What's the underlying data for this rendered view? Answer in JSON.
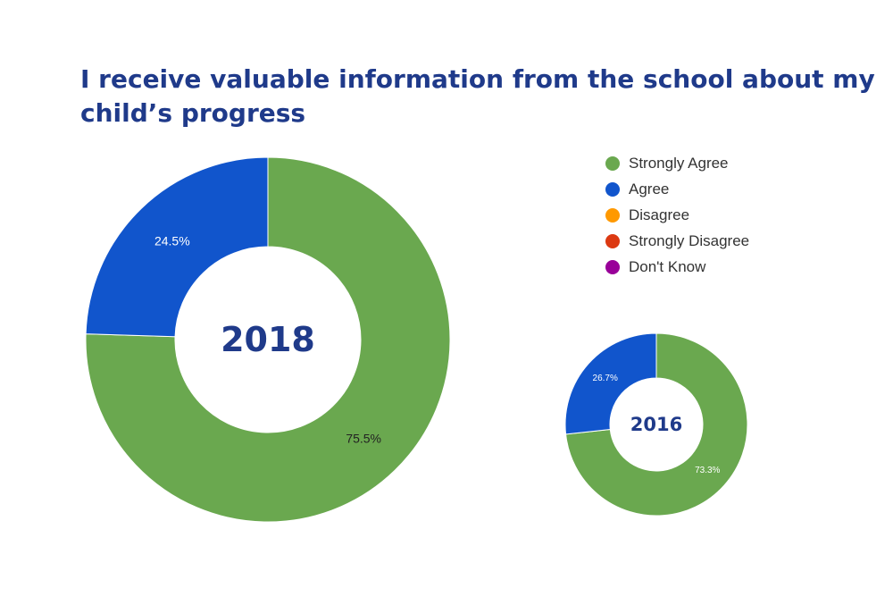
{
  "chart_data": {
    "type": "pie",
    "title": "I receive valuable information from the school about my child’s progress",
    "legend": [
      {
        "label": "Strongly Agree",
        "color": "#6aa84f"
      },
      {
        "label": "Agree",
        "color": "#1155cc"
      },
      {
        "label": "Disagree",
        "color": "#ff9900"
      },
      {
        "label": "Strongly Disagree",
        "color": "#dc3912"
      },
      {
        "label": "Don't Know",
        "color": "#990099"
      }
    ],
    "legend_position": "top-right",
    "charts": [
      {
        "center_label": "2018",
        "slices": [
          {
            "label": "Strongly Agree",
            "value": 75.5,
            "display": "75.5%",
            "color": "#6aa84f"
          },
          {
            "label": "Agree",
            "value": 24.5,
            "display": "24.5%",
            "color": "#1155cc"
          }
        ]
      },
      {
        "center_label": "2016",
        "slices": [
          {
            "label": "Strongly Agree",
            "value": 73.3,
            "display": "73.3%",
            "color": "#6aa84f"
          },
          {
            "label": "Agree",
            "value": 26.7,
            "display": "26.7%",
            "color": "#1155cc"
          }
        ]
      }
    ]
  }
}
